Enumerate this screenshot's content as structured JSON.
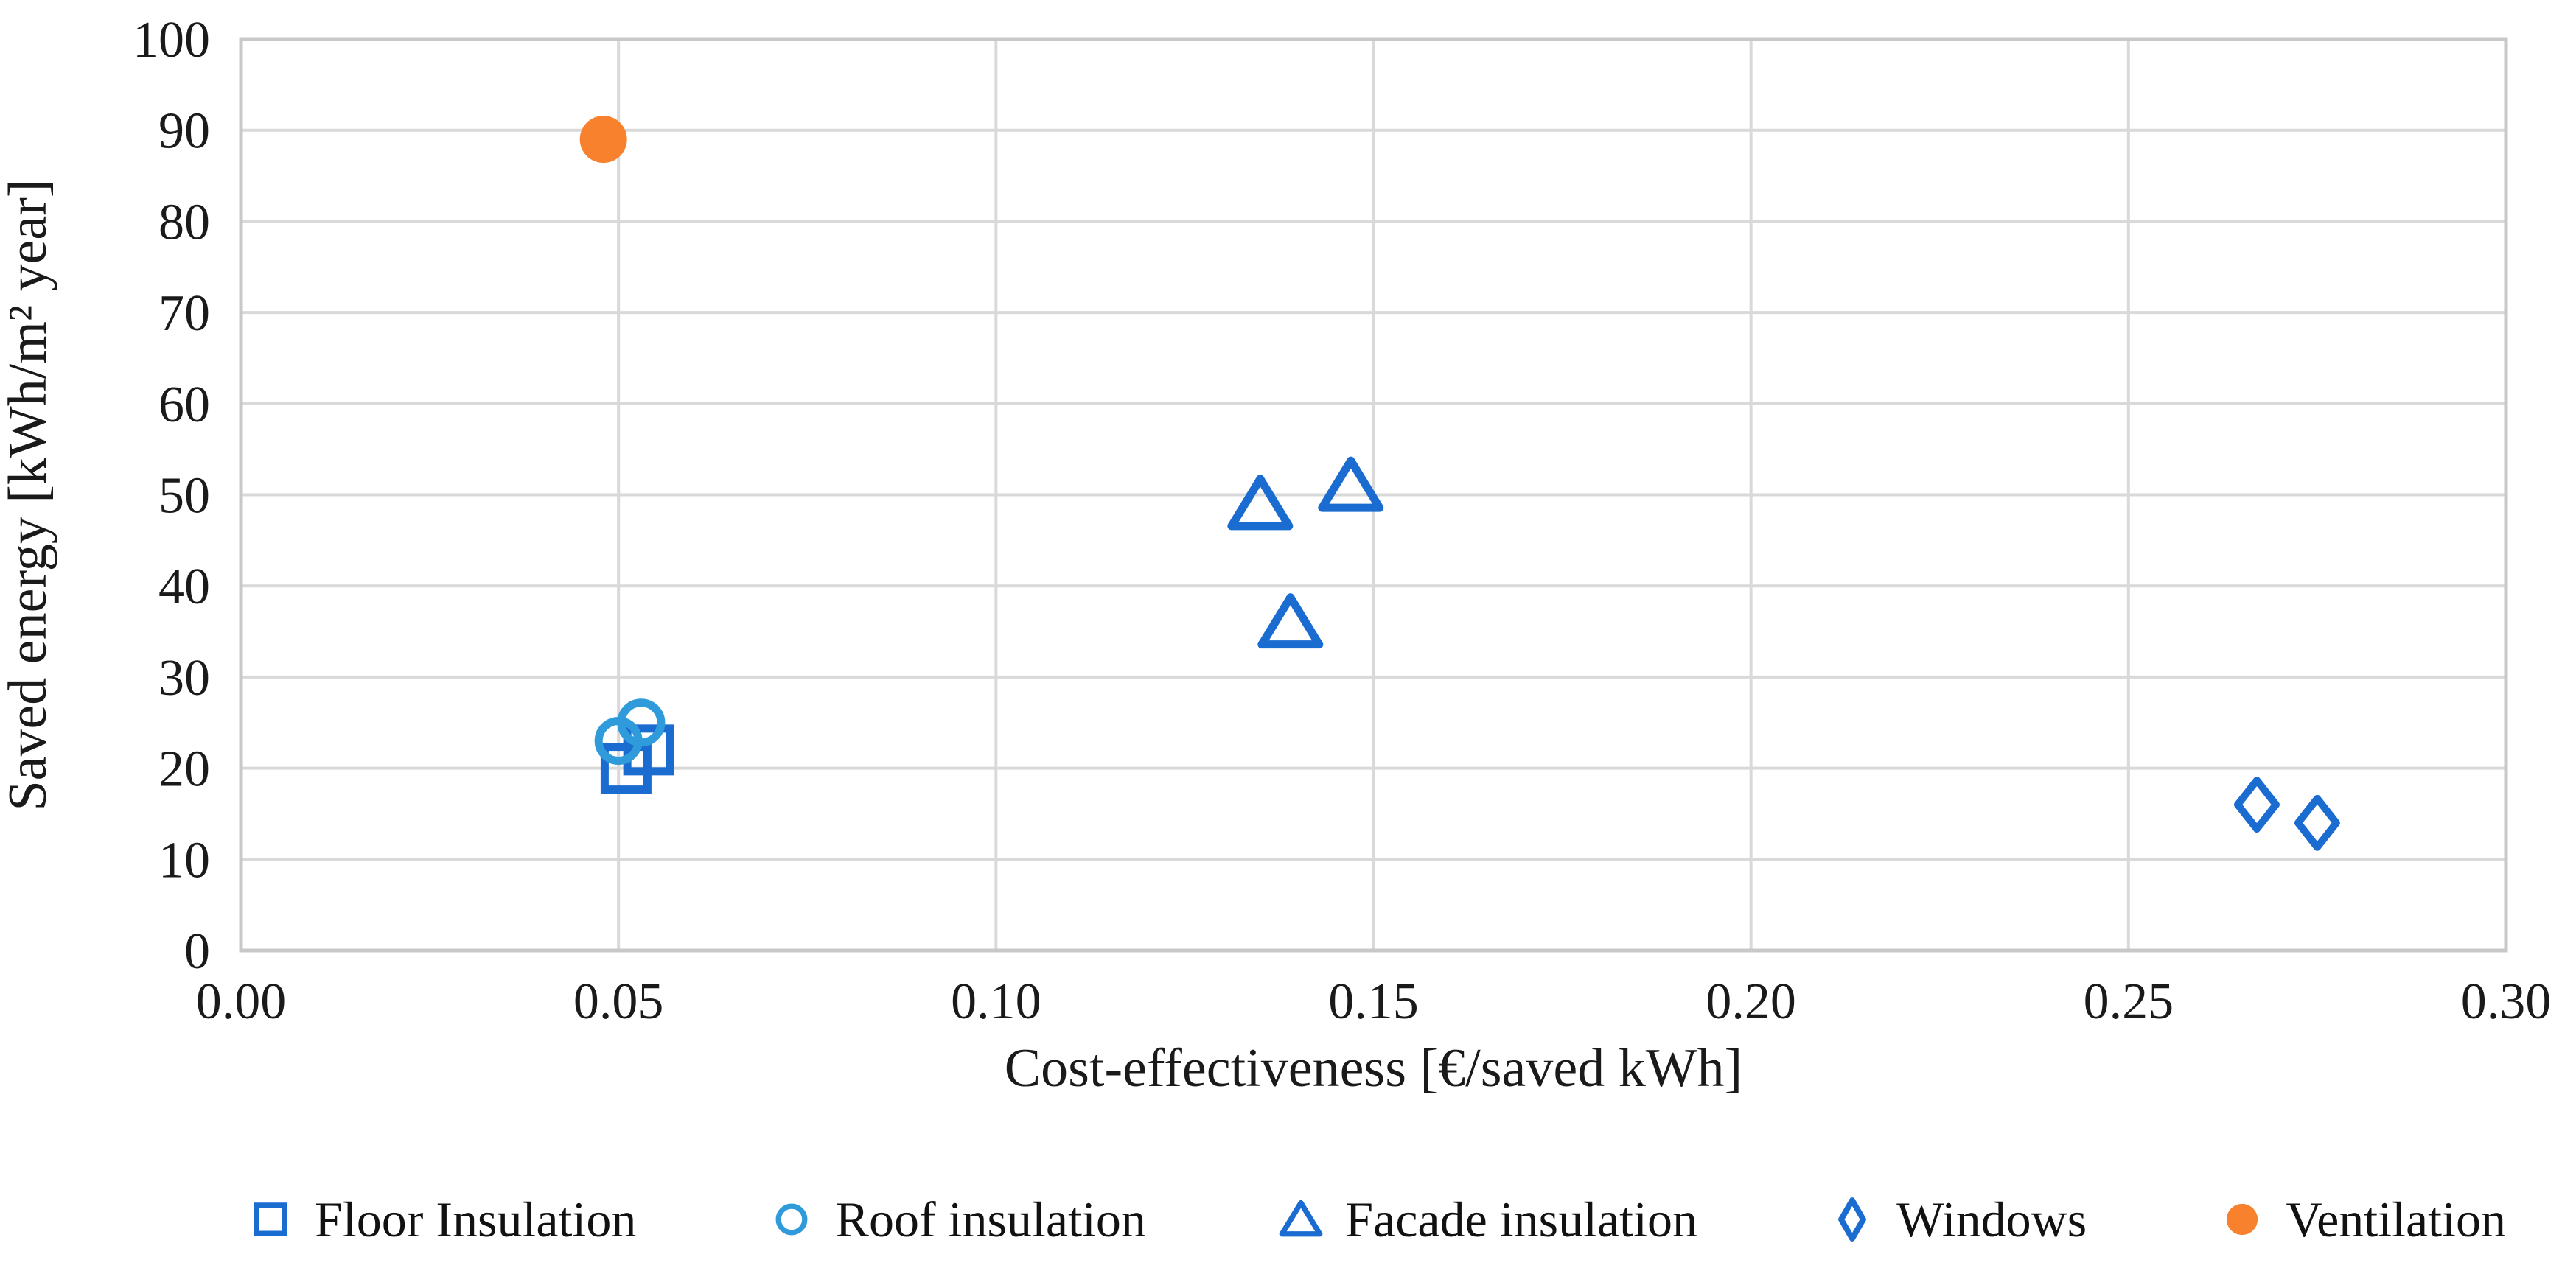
{
  "chart_data": {
    "type": "scatter",
    "title": "",
    "xlabel": "Cost-effectiveness [€/saved kWh]",
    "ylabel": "Saved energy [kWh/m² year]",
    "xlim": [
      0.0,
      0.3
    ],
    "ylim": [
      0,
      100
    ],
    "grid": true,
    "legend_position": "bottom",
    "xticks": {
      "values": [
        0.0,
        0.05,
        0.1,
        0.15,
        0.2,
        0.25,
        0.3
      ],
      "labels": [
        "0.00",
        "0.05",
        "0.10",
        "0.15",
        "0.20",
        "0.25",
        "0.30"
      ]
    },
    "yticks": {
      "values": [
        0,
        10,
        20,
        30,
        40,
        50,
        60,
        70,
        80,
        90,
        100
      ],
      "labels": [
        "0",
        "10",
        "20",
        "30",
        "40",
        "50",
        "60",
        "70",
        "80",
        "90",
        "100"
      ]
    },
    "series": [
      {
        "name": "Floor Insulation",
        "marker": "square-outline",
        "color": "#1B6CD1",
        "points": [
          {
            "x": 0.051,
            "y": 20
          },
          {
            "x": 0.054,
            "y": 22
          }
        ]
      },
      {
        "name": "Roof insulation",
        "marker": "circle-outline",
        "color": "#2F9BDB",
        "points": [
          {
            "x": 0.05,
            "y": 23
          },
          {
            "x": 0.053,
            "y": 25
          }
        ]
      },
      {
        "name": "Facade insulation",
        "marker": "triangle-outline",
        "color": "#1B6CD1",
        "points": [
          {
            "x": 0.135,
            "y": 49
          },
          {
            "x": 0.139,
            "y": 36
          },
          {
            "x": 0.147,
            "y": 51
          }
        ]
      },
      {
        "name": "Windows",
        "marker": "diamond-outline",
        "color": "#1B6CD1",
        "points": [
          {
            "x": 0.267,
            "y": 16
          },
          {
            "x": 0.275,
            "y": 14
          }
        ]
      },
      {
        "name": "Ventilation",
        "marker": "circle-filled",
        "color": "#F8812D",
        "points": [
          {
            "x": 0.048,
            "y": 89
          }
        ]
      }
    ],
    "colors": {
      "gridline": "#D9D9D9",
      "plot_border": "#C8C8C8",
      "text": "#1A1A1A"
    }
  }
}
